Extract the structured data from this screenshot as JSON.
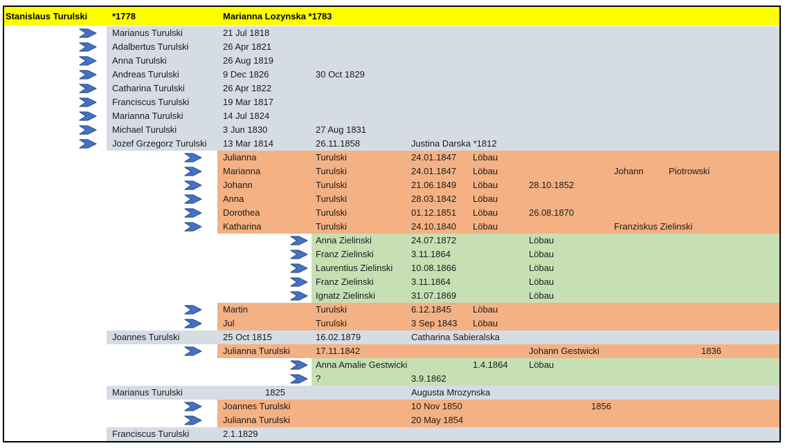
{
  "palette": {
    "header_bg": "#FFFF00",
    "level1_bg": "#D6DCE4",
    "level2_bg": "#F4B183",
    "level3_bg": "#C6E0B4",
    "arrow_fill": "#4472C4",
    "arrow_stroke": "#2F528F",
    "border": "#000000",
    "text": "#1B1B1B"
  },
  "icons": {
    "descendant_arrow": "chevron-right-arrow"
  },
  "header": {
    "cells": [
      {
        "col": "a",
        "role": "root-father-name",
        "text": "Stanislaus Turulski"
      },
      {
        "col": "b",
        "role": "root-father-birth-year",
        "text": "*1778"
      },
      {
        "col": "c",
        "role": "root-mother-name",
        "text": "Marianna Lozynska *1783"
      }
    ]
  },
  "rows": [
    {
      "level": 1,
      "arrow": 1,
      "cells": [
        {
          "col": "b",
          "role": "person-name",
          "text": "Marianus Turulski"
        },
        {
          "col": "c",
          "role": "birth-date",
          "text": "21 Jul 1818"
        }
      ]
    },
    {
      "level": 1,
      "arrow": 1,
      "cells": [
        {
          "col": "b",
          "role": "person-name",
          "text": "Adalbertus Turulski"
        },
        {
          "col": "c",
          "role": "birth-date",
          "text": "26 Apr 1821"
        }
      ]
    },
    {
      "level": 1,
      "arrow": 1,
      "cells": [
        {
          "col": "b",
          "role": "person-name",
          "text": "Anna Turulski"
        },
        {
          "col": "c",
          "role": "birth-date",
          "text": "26 Aug 1819"
        }
      ]
    },
    {
      "level": 1,
      "arrow": 1,
      "cells": [
        {
          "col": "b",
          "role": "person-name",
          "text": "Andreas Turulski"
        },
        {
          "col": "c",
          "role": "birth-date",
          "text": "9 Dec 1826"
        },
        {
          "col": "d",
          "role": "death-date",
          "text": "30 Oct 1829"
        }
      ]
    },
    {
      "level": 1,
      "arrow": 1,
      "cells": [
        {
          "col": "b",
          "role": "person-name",
          "text": "Catharina Turulski"
        },
        {
          "col": "c",
          "role": "birth-date",
          "text": "26 Apr 1822"
        }
      ]
    },
    {
      "level": 1,
      "arrow": 1,
      "cells": [
        {
          "col": "b",
          "role": "person-name",
          "text": "Franciscus Turulski"
        },
        {
          "col": "c",
          "role": "birth-date",
          "text": "19 Mar 1817"
        }
      ]
    },
    {
      "level": 1,
      "arrow": 1,
      "cells": [
        {
          "col": "b",
          "role": "person-name",
          "text": "Marianna Turulski"
        },
        {
          "col": "c",
          "role": "birth-date",
          "text": "14 Jul 1824"
        }
      ]
    },
    {
      "level": 1,
      "arrow": 1,
      "cells": [
        {
          "col": "b",
          "role": "person-name",
          "text": "Michael Turulski"
        },
        {
          "col": "c",
          "role": "birth-date",
          "text": "3 Jun 1830"
        },
        {
          "col": "d",
          "role": "death-date",
          "text": "27 Aug 1831"
        }
      ]
    },
    {
      "level": 1,
      "arrow": 1,
      "cells": [
        {
          "col": "b",
          "role": "person-name",
          "text": "Jozef Grzegorz Turulski"
        },
        {
          "col": "c",
          "role": "birth-date",
          "text": "13 Mar 1814"
        },
        {
          "col": "d",
          "role": "marriage-date",
          "text": "26.11.1858"
        },
        {
          "col": "e",
          "role": "spouse-name",
          "text": "Justina Darska *1812"
        }
      ]
    },
    {
      "level": 2,
      "arrow": 2,
      "cells": [
        {
          "col": "c",
          "role": "first-name",
          "text": "Julianna"
        },
        {
          "col": "d",
          "role": "surname",
          "text": "Turulski"
        },
        {
          "col": "e",
          "role": "birth-date",
          "text": "24.01.1847"
        },
        {
          "col": "f",
          "role": "birth-place",
          "text": "Löbau"
        }
      ]
    },
    {
      "level": 2,
      "arrow": 2,
      "cells": [
        {
          "col": "c",
          "role": "first-name",
          "text": "Marianna"
        },
        {
          "col": "d",
          "role": "surname",
          "text": "Turulski"
        },
        {
          "col": "e",
          "role": "birth-date",
          "text": "24.01.1847"
        },
        {
          "col": "f",
          "role": "birth-place",
          "text": "Löbau"
        },
        {
          "col": "i",
          "role": "spouse-first-name",
          "text": "Johann"
        },
        {
          "col": "j",
          "role": "spouse-surname",
          "text": "Piotrowski"
        }
      ]
    },
    {
      "level": 2,
      "arrow": 2,
      "cells": [
        {
          "col": "c",
          "role": "first-name",
          "text": "Johann"
        },
        {
          "col": "d",
          "role": "surname",
          "text": "Turulski"
        },
        {
          "col": "e",
          "role": "birth-date",
          "text": "21.06.1849"
        },
        {
          "col": "f",
          "role": "birth-place",
          "text": "Löbau"
        },
        {
          "col": "g",
          "role": "death-date",
          "text": "28.10.1852"
        }
      ]
    },
    {
      "level": 2,
      "arrow": 2,
      "cells": [
        {
          "col": "c",
          "role": "first-name",
          "text": "Anna"
        },
        {
          "col": "d",
          "role": "surname",
          "text": "Turulski"
        },
        {
          "col": "e",
          "role": "birth-date",
          "text": "28.03.1842"
        },
        {
          "col": "f",
          "role": "birth-place",
          "text": "Löbau"
        }
      ]
    },
    {
      "level": 2,
      "arrow": 2,
      "cells": [
        {
          "col": "c",
          "role": "first-name",
          "text": "Dorothea"
        },
        {
          "col": "d",
          "role": "surname",
          "text": "Turulski"
        },
        {
          "col": "e",
          "role": "birth-date",
          "text": "01.12.1851"
        },
        {
          "col": "f",
          "role": "birth-place",
          "text": "Löbau"
        },
        {
          "col": "g",
          "role": "event-date",
          "text": "26.08.1870"
        }
      ]
    },
    {
      "level": 2,
      "arrow": 2,
      "cells": [
        {
          "col": "c",
          "role": "first-name",
          "text": "Katharina"
        },
        {
          "col": "d",
          "role": "surname",
          "text": "Turulski"
        },
        {
          "col": "e",
          "role": "birth-date",
          "text": "24.10.1840"
        },
        {
          "col": "f",
          "role": "birth-place",
          "text": "Löbau"
        },
        {
          "col": "i",
          "role": "spouse-name",
          "text": "Franziskus Zielinski"
        }
      ]
    },
    {
      "level": 3,
      "arrow": 3,
      "cells": [
        {
          "col": "d",
          "role": "person-name",
          "text": "Anna Zielinski"
        },
        {
          "col": "e",
          "role": "birth-date",
          "text": "24.07.1872"
        },
        {
          "col": "g",
          "role": "birth-place",
          "text": "Löbau"
        }
      ]
    },
    {
      "level": 3,
      "arrow": 3,
      "cells": [
        {
          "col": "d",
          "role": "person-name",
          "text": "Franz Zielinski"
        },
        {
          "col": "e",
          "role": "birth-date",
          "text": "3.11.1864"
        },
        {
          "col": "g",
          "role": "birth-place",
          "text": "Löbau"
        }
      ]
    },
    {
      "level": 3,
      "arrow": 3,
      "cells": [
        {
          "col": "d",
          "role": "person-name",
          "text": "Laurentius Zielinski"
        },
        {
          "col": "e",
          "role": "birth-date",
          "text": "10.08.1866"
        },
        {
          "col": "g",
          "role": "birth-place",
          "text": "Löbau"
        }
      ]
    },
    {
      "level": 3,
      "arrow": 3,
      "cells": [
        {
          "col": "d",
          "role": "person-name",
          "text": "Franz Zielinski"
        },
        {
          "col": "e",
          "role": "birth-date",
          "text": "3.11.1864"
        },
        {
          "col": "g",
          "role": "birth-place",
          "text": "Löbau"
        }
      ]
    },
    {
      "level": 3,
      "arrow": 3,
      "cells": [
        {
          "col": "d",
          "role": "person-name",
          "text": "Ignatz Zielinski"
        },
        {
          "col": "e",
          "role": "birth-date",
          "text": "31.07.1869"
        },
        {
          "col": "g",
          "role": "birth-place",
          "text": "Löbau"
        }
      ]
    },
    {
      "level": 2,
      "arrow": 2,
      "cells": [
        {
          "col": "c",
          "role": "first-name",
          "text": "Martin"
        },
        {
          "col": "d",
          "role": "surname",
          "text": "Turulski"
        },
        {
          "col": "e",
          "role": "birth-date",
          "text": "6.12.1845"
        },
        {
          "col": "f",
          "role": "birth-place",
          "text": "Löbau"
        }
      ]
    },
    {
      "level": 2,
      "arrow": 2,
      "cells": [
        {
          "col": "c",
          "role": "first-name",
          "text": "Jul"
        },
        {
          "col": "d",
          "role": "surname",
          "text": "Turulski"
        },
        {
          "col": "e",
          "role": "birth-date",
          "text": "3 Sep 1843"
        },
        {
          "col": "f",
          "role": "birth-place",
          "text": "Löbau"
        }
      ]
    },
    {
      "level": 1,
      "arrow": 0,
      "cells": [
        {
          "col": "b",
          "role": "person-name",
          "text": "Joannes Turulski"
        },
        {
          "col": "c",
          "role": "birth-date",
          "text": "25 Oct 1815"
        },
        {
          "col": "d",
          "role": "marriage-date",
          "text": "16.02.1879"
        },
        {
          "col": "e",
          "role": "spouse-name",
          "text": "Catharina Sabieralska"
        }
      ]
    },
    {
      "level": 2,
      "arrow": 2,
      "cells": [
        {
          "col": "c",
          "role": "person-name",
          "text": "Julianna Turulski"
        },
        {
          "col": "d",
          "role": "birth-date",
          "text": "17.11.1842"
        },
        {
          "col": "g",
          "role": "spouse-name",
          "text": "Johann Gestwicki"
        },
        {
          "col": "k",
          "role": "spouse-birth-year",
          "text": "1836"
        }
      ]
    },
    {
      "level": 3,
      "arrow": 3,
      "cells": [
        {
          "col": "d",
          "role": "person-name",
          "text": "Anna Amalie Gestwicki"
        },
        {
          "col": "f",
          "role": "birth-date",
          "text": "1.4.1864"
        },
        {
          "col": "g",
          "role": "birth-place",
          "text": "Löbau"
        }
      ]
    },
    {
      "level": 3,
      "arrow": 3,
      "cells": [
        {
          "col": "d",
          "role": "person-name",
          "text": "?"
        },
        {
          "col": "e",
          "role": "birth-date",
          "text": "3.9.1862"
        }
      ]
    },
    {
      "level": 1,
      "arrow": 0,
      "cells": [
        {
          "col": "b",
          "role": "person-name",
          "text": "Marianus Turulski"
        },
        {
          "col": "c2",
          "role": "marriage-year",
          "text": "1825"
        },
        {
          "col": "e",
          "role": "spouse-name",
          "text": "Augusta Mrozynska"
        }
      ]
    },
    {
      "level": 2,
      "arrow": 2,
      "cells": [
        {
          "col": "c",
          "role": "person-name",
          "text": "Joannes Turulski"
        },
        {
          "col": "e",
          "role": "birth-date",
          "text": "10 Nov 1850"
        },
        {
          "col": "h",
          "role": "event-year",
          "text": "1856"
        }
      ]
    },
    {
      "level": 2,
      "arrow": 2,
      "cells": [
        {
          "col": "c",
          "role": "person-name",
          "text": "Julianna Turulski"
        },
        {
          "col": "e",
          "role": "birth-date",
          "text": "20 May 1854"
        }
      ]
    },
    {
      "level": 1,
      "arrow": 0,
      "cells": [
        {
          "col": "b",
          "role": "person-name",
          "text": "Franciscus Turulski"
        },
        {
          "col": "c",
          "role": "birth-date",
          "text": "2.1.1829"
        }
      ]
    }
  ]
}
